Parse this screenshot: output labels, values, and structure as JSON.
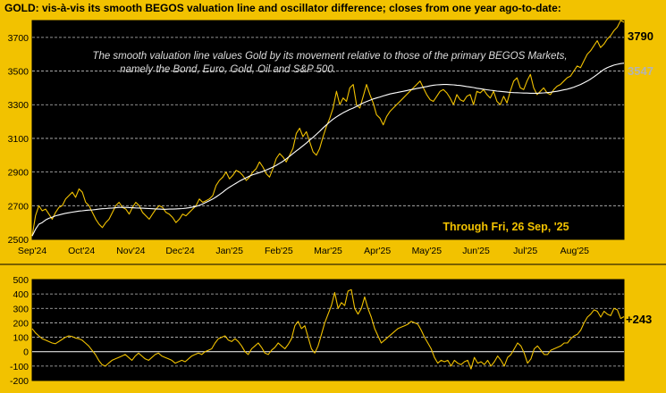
{
  "title": "GOLD:  vis-à-vis its smooth BEGOS valuation line and oscillator difference; closes from one year ago-to-date:",
  "colors": {
    "background": "#f2c200",
    "plot_bg": "#000000",
    "price_line": "#f2c200",
    "valuation_line": "#ffffff",
    "grid": "#bfbfbf",
    "last_price_label": "#000000",
    "last_value_label": "#b3b3b3"
  },
  "chart_data": [
    {
      "type": "line",
      "title": "",
      "annotation": "The smooth valuation line values Gold by its movement relative to those of the primary BEGOS Markets, namely the Bond, Euro, Gold, Oil and S&P 500.",
      "annotation_lines": [
        "The smooth valuation line values Gold by its movement relative to those of the primary BEGOS Markets,",
        "namely the Bond, Euro, Gold, Oil and S&P 500."
      ],
      "through_label": "Through Fri, 26 Sep, '25",
      "x_ticks": [
        "Sep'24",
        "Oct'24",
        "Nov'24",
        "Dec'24",
        "Jan'25",
        "Feb'25",
        "Mar'25",
        "Apr'25",
        "May'25",
        "Jun'25",
        "Jul'25",
        "Aug'25"
      ],
      "ylim": [
        2500,
        3800
      ],
      "y_ticks": [
        2500,
        2700,
        2900,
        3100,
        3300,
        3500,
        3700
      ],
      "grid": true,
      "last_price_label": "3790",
      "last_value_label": "3547",
      "series": [
        {
          "values": [
            2520,
            2640,
            2700,
            2670,
            2680,
            2650,
            2620,
            2660,
            2690,
            2700,
            2740,
            2760,
            2780,
            2750,
            2800,
            2780,
            2720,
            2700,
            2660,
            2620,
            2590,
            2570,
            2600,
            2620,
            2660,
            2700,
            2720,
            2690,
            2680,
            2650,
            2690,
            2720,
            2700,
            2660,
            2640,
            2620,
            2650,
            2680,
            2700,
            2690,
            2660,
            2650,
            2630,
            2600,
            2620,
            2650,
            2640,
            2660,
            2680,
            2700,
            2740,
            2720,
            2730,
            2740,
            2760,
            2820,
            2850,
            2870,
            2900,
            2860,
            2880,
            2910,
            2900,
            2880,
            2850,
            2870,
            2900,
            2920,
            2960,
            2930,
            2890,
            2870,
            2920,
            2980,
            3010,
            2990,
            2960,
            3000,
            3040,
            3130,
            3160,
            3110,
            3140,
            3080,
            3020,
            3000,
            3040,
            3110,
            3170,
            3220,
            3280,
            3380,
            3300,
            3340,
            3320,
            3400,
            3420,
            3300,
            3280,
            3350,
            3420,
            3360,
            3310,
            3240,
            3220,
            3180,
            3230,
            3260,
            3280,
            3300,
            3320,
            3340,
            3360,
            3380,
            3400,
            3420,
            3440,
            3400,
            3360,
            3330,
            3320,
            3350,
            3380,
            3390,
            3370,
            3340,
            3300,
            3360,
            3330,
            3320,
            3350,
            3360,
            3300,
            3380,
            3370,
            3390,
            3360,
            3340,
            3380,
            3320,
            3300,
            3350,
            3310,
            3380,
            3440,
            3460,
            3400,
            3390,
            3440,
            3480,
            3400,
            3360,
            3380,
            3400,
            3370,
            3360,
            3390,
            3410,
            3420,
            3440,
            3460,
            3470,
            3500,
            3530,
            3520,
            3560,
            3600,
            3620,
            3650,
            3680,
            3640,
            3660,
            3690,
            3710,
            3740,
            3760,
            3800,
            3790
          ]
        },
        {
          "values": [
            2520,
            2560,
            2590,
            2600,
            2615,
            2625,
            2632,
            2640,
            2645,
            2650,
            2655,
            2658,
            2662,
            2665,
            2668,
            2670,
            2672,
            2674,
            2675,
            2677,
            2680,
            2682,
            2683,
            2685,
            2686,
            2688,
            2690,
            2690,
            2690,
            2689,
            2688,
            2687,
            2686,
            2685,
            2684,
            2683,
            2682,
            2681,
            2680,
            2679,
            2679,
            2680,
            2680,
            2681,
            2682,
            2683,
            2685,
            2688,
            2692,
            2696,
            2702,
            2710,
            2720,
            2730,
            2740,
            2752,
            2766,
            2780,
            2796,
            2810,
            2822,
            2834,
            2846,
            2856,
            2866,
            2876,
            2884,
            2890,
            2897,
            2904,
            2912,
            2920,
            2930,
            2940,
            2952,
            2964,
            2978,
            2994,
            3010,
            3026,
            3040,
            3056,
            3072,
            3090,
            3106,
            3124,
            3142,
            3162,
            3180,
            3198,
            3214,
            3228,
            3240,
            3252,
            3262,
            3272,
            3280,
            3290,
            3300,
            3310,
            3318,
            3326,
            3334,
            3340,
            3346,
            3352,
            3358,
            3364,
            3368,
            3372,
            3376,
            3380,
            3384,
            3388,
            3392,
            3396,
            3400,
            3404,
            3408,
            3412,
            3416,
            3418,
            3419,
            3420,
            3420,
            3419,
            3418,
            3416,
            3414,
            3411,
            3408,
            3405,
            3402,
            3398,
            3395,
            3392,
            3389,
            3386,
            3384,
            3381,
            3379,
            3377,
            3375,
            3373,
            3372,
            3371,
            3370,
            3369,
            3369,
            3368,
            3368,
            3368,
            3369,
            3370,
            3372,
            3374,
            3377,
            3380,
            3384,
            3388,
            3392,
            3398,
            3404,
            3412,
            3420,
            3430,
            3440,
            3452,
            3465,
            3480,
            3495,
            3510,
            3520,
            3528,
            3535,
            3540,
            3544,
            3547
          ]
        }
      ]
    },
    {
      "type": "line",
      "title": "",
      "ylim": [
        -200,
        500
      ],
      "y_ticks": [
        -200,
        -100,
        0,
        100,
        200,
        300,
        400,
        500
      ],
      "grid": true,
      "last_value_label": "+243",
      "series": [
        {
          "values": [
            160,
            130,
            110,
            90,
            80,
            70,
            60,
            55,
            70,
            85,
            100,
            110,
            105,
            95,
            90,
            80,
            60,
            40,
            10,
            -20,
            -60,
            -90,
            -100,
            -80,
            -60,
            -50,
            -40,
            -30,
            -20,
            -40,
            -60,
            -30,
            -10,
            -30,
            -50,
            -60,
            -40,
            -20,
            -10,
            -30,
            -40,
            -50,
            -60,
            -80,
            -70,
            -60,
            -70,
            -50,
            -30,
            -20,
            -10,
            -20,
            0,
            10,
            20,
            60,
            90,
            100,
            110,
            80,
            70,
            90,
            70,
            40,
            0,
            -20,
            20,
            40,
            60,
            30,
            -10,
            -20,
            10,
            30,
            60,
            40,
            20,
            50,
            90,
            180,
            210,
            160,
            180,
            100,
            20,
            -10,
            40,
            120,
            200,
            260,
            320,
            410,
            300,
            340,
            320,
            420,
            430,
            300,
            260,
            300,
            380,
            300,
            240,
            160,
            110,
            60,
            80,
            100,
            120,
            140,
            160,
            170,
            180,
            190,
            210,
            200,
            190,
            150,
            100,
            60,
            20,
            -40,
            -80,
            -60,
            -70,
            -60,
            -100,
            -60,
            -80,
            -90,
            -70,
            -60,
            -120,
            -40,
            -80,
            -70,
            -90,
            -60,
            -100,
            -70,
            -30,
            -60,
            -100,
            -40,
            -20,
            20,
            60,
            40,
            -10,
            -80,
            -50,
            20,
            40,
            10,
            -20,
            -20,
            10,
            20,
            30,
            40,
            60,
            60,
            90,
            110,
            120,
            150,
            200,
            240,
            260,
            290,
            280,
            240,
            280,
            260,
            250,
            300,
            290,
            230,
            243
          ]
        }
      ]
    }
  ]
}
